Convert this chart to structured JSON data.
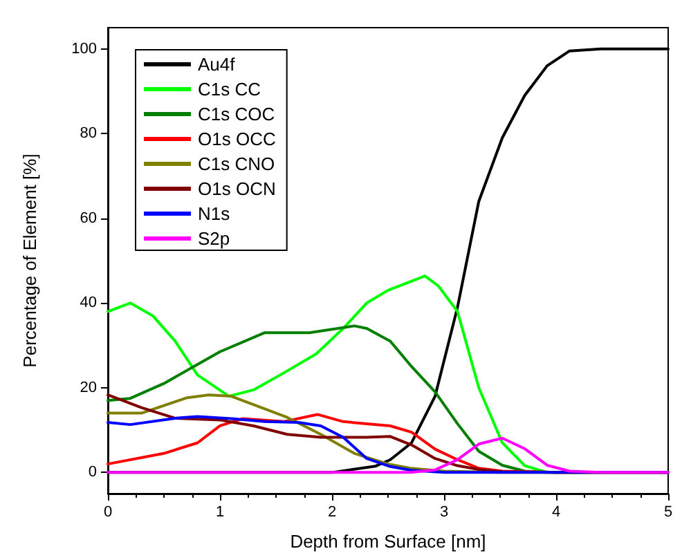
{
  "chart_data": {
    "type": "line",
    "xlabel": "Depth from Surface [nm]",
    "ylabel": "Percentage of Element [%]",
    "xlim": [
      0,
      5
    ],
    "xticks": [
      0,
      1,
      2,
      3,
      4,
      5
    ],
    "ylim": [
      -5,
      105
    ],
    "yticks": [
      0,
      20,
      40,
      60,
      80,
      100
    ],
    "grid": false,
    "legend": "top left",
    "marker": "none",
    "line_style": "solid",
    "series": [
      {
        "name": "Au4f",
        "color": "#000000",
        "x": [
          0,
          1,
          2,
          2.39,
          2.52,
          2.71,
          2.92,
          3.12,
          3.31,
          3.52,
          3.72,
          3.92,
          4.12,
          4.4,
          5
        ],
        "values": [
          0,
          0,
          0,
          1.5,
          3,
          7,
          18,
          39,
          64,
          79,
          89,
          96,
          99.5,
          100,
          100
        ]
      },
      {
        "name": "C1s CC",
        "color": "#00ff00",
        "x": [
          0,
          0.2,
          0.4,
          0.6,
          0.8,
          1.08,
          1.3,
          1.57,
          1.86,
          2.1,
          2.31,
          2.5,
          2.83,
          2.95,
          3.12,
          3.31,
          3.52,
          3.72,
          3.92,
          5
        ],
        "values": [
          38,
          40,
          37,
          31,
          23,
          18,
          19.5,
          23.5,
          28,
          34,
          40,
          43,
          46.4,
          44,
          38,
          20,
          7,
          1.6,
          0,
          0
        ]
      },
      {
        "name": "C1s COC",
        "color": "#007f00",
        "x": [
          0,
          0.2,
          0.5,
          1,
          1.4,
          1.8,
          2.2,
          2.31,
          2.52,
          2.71,
          2.92,
          3.12,
          3.31,
          3.52,
          3.72,
          4,
          5
        ],
        "values": [
          17,
          17.5,
          21,
          28.5,
          33,
          33,
          34.6,
          34,
          31,
          25,
          19,
          11.5,
          5,
          1.7,
          0.3,
          0,
          0
        ]
      },
      {
        "name": "O1s OCC",
        "color": "#ff0000",
        "x": [
          0,
          0.5,
          0.8,
          1,
          1.2,
          1.57,
          1.87,
          2.1,
          2.31,
          2.52,
          2.71,
          2.92,
          3.12,
          3.31,
          3.52,
          4,
          5
        ],
        "values": [
          2,
          4.5,
          7,
          11,
          12.7,
          12,
          13.7,
          12,
          11.5,
          11,
          9.5,
          5.5,
          3,
          1,
          0.3,
          0,
          0
        ]
      },
      {
        "name": "C1s CNO",
        "color": "#808000",
        "x": [
          0,
          0.3,
          0.7,
          0.9,
          1.1,
          1.4,
          1.6,
          1.9,
          2.2,
          2.5,
          2.7,
          3,
          3.5,
          5
        ],
        "values": [
          14,
          14,
          17.6,
          18.3,
          18,
          15,
          13,
          9,
          4.5,
          2,
          1,
          0.3,
          0,
          0
        ]
      },
      {
        "name": "O1s OCN",
        "color": "#800000",
        "x": [
          0,
          0.3,
          0.6,
          1,
          1.3,
          1.6,
          1.9,
          2.31,
          2.52,
          2.71,
          2.92,
          3.12,
          3.31,
          3.52,
          4,
          5
        ],
        "values": [
          18.3,
          15.3,
          12.8,
          12.4,
          11,
          9,
          8.3,
          8.3,
          8.5,
          6.5,
          3.3,
          1.6,
          0.7,
          0.2,
          0,
          0
        ]
      },
      {
        "name": "N1s",
        "color": "#0000ff",
        "x": [
          0,
          0.2,
          0.6,
          0.8,
          1.1,
          1.4,
          1.7,
          1.9,
          2.1,
          2.31,
          2.52,
          2.71,
          3,
          5
        ],
        "values": [
          11.8,
          11.3,
          12.8,
          13.2,
          12.7,
          12,
          11.8,
          11,
          8.3,
          3.3,
          1.4,
          0.5,
          0,
          0
        ]
      },
      {
        "name": "S2p",
        "color": "#ff00ff",
        "x": [
          0,
          1,
          2,
          2.7,
          2.92,
          3.12,
          3.31,
          3.52,
          3.72,
          3.92,
          4.12,
          4.4,
          5
        ],
        "values": [
          0,
          0,
          0,
          0,
          0.6,
          3,
          6.7,
          8.1,
          5.6,
          1.7,
          0.3,
          0,
          0
        ]
      }
    ]
  }
}
